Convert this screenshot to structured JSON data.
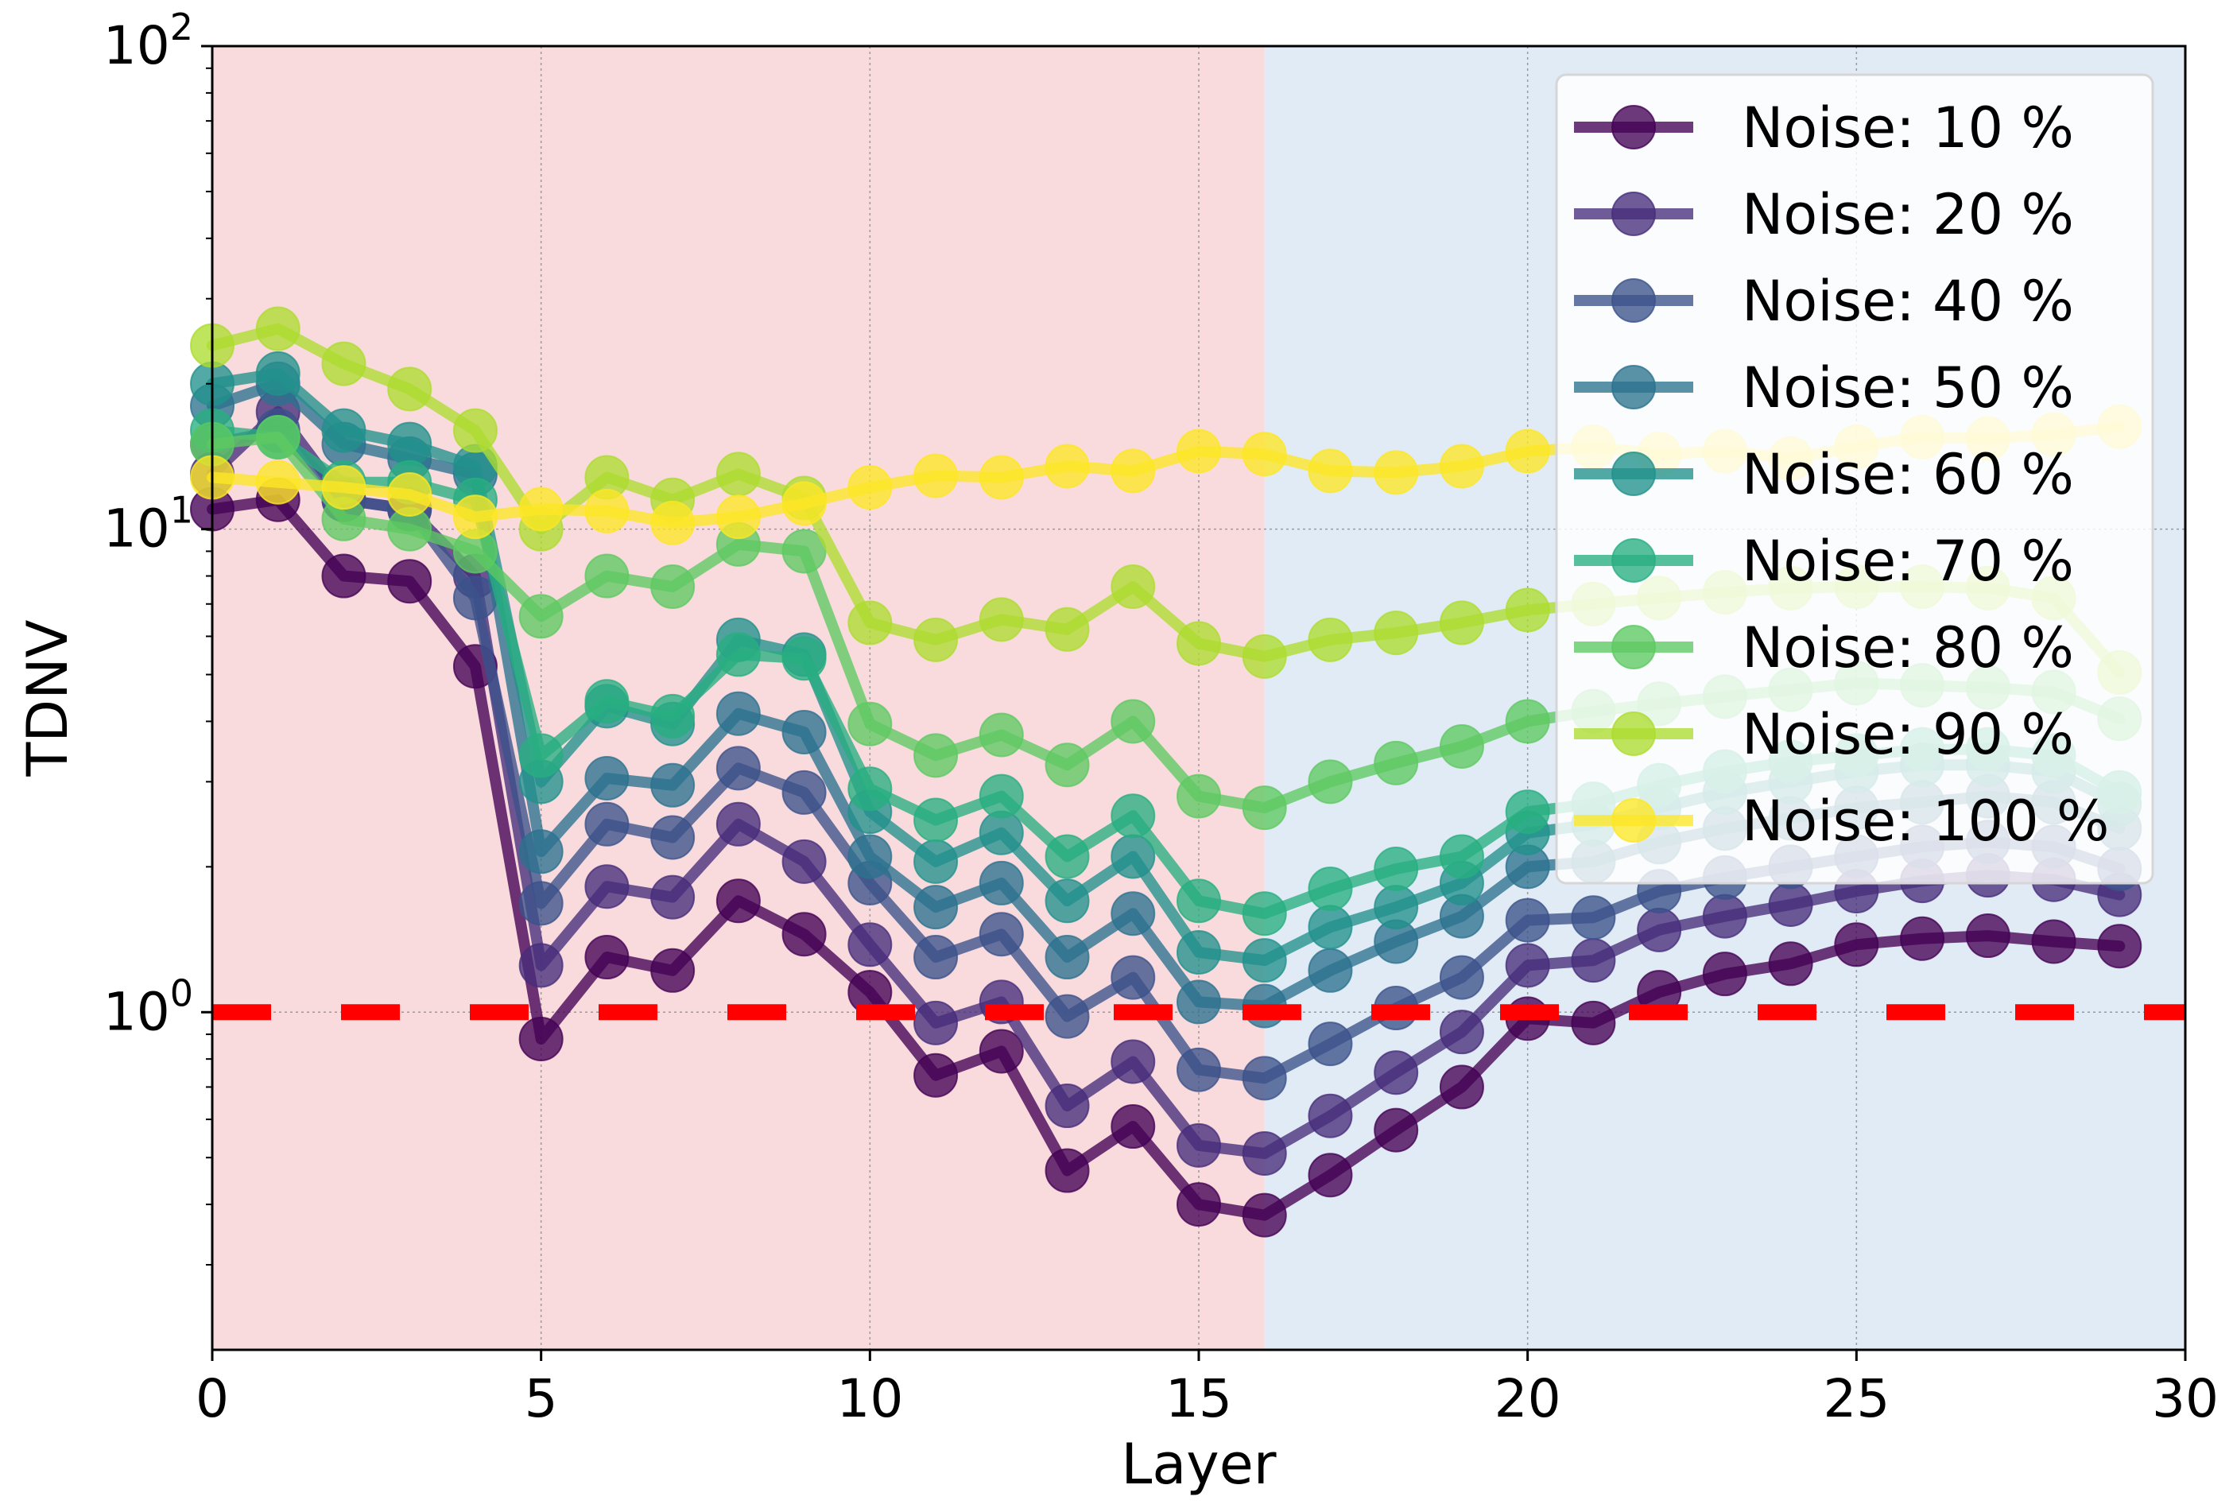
{
  "chart_data": {
    "type": "line",
    "xlabel": "Layer",
    "ylabel": "TDNV",
    "yscale": "log",
    "xlim": [
      0,
      30
    ],
    "ylim": [
      0.2,
      100
    ],
    "xticks": [
      {
        "value": 0,
        "label": "0"
      },
      {
        "value": 5,
        "label": "5"
      },
      {
        "value": 10,
        "label": "10"
      },
      {
        "value": 15,
        "label": "15"
      },
      {
        "value": 20,
        "label": "20"
      },
      {
        "value": 25,
        "label": "25"
      },
      {
        "value": 30,
        "label": "30"
      }
    ],
    "yticks": [
      {
        "value": 1,
        "base": "10",
        "exp": "0"
      },
      {
        "value": 10,
        "base": "10",
        "exp": "1"
      },
      {
        "value": 100,
        "base": "10",
        "exp": "2"
      }
    ],
    "grid": true,
    "legend_position": "top-right",
    "background_regions": [
      {
        "x_from": 0,
        "x_to": 16,
        "color": "#f9dbdd"
      },
      {
        "x_from": 16,
        "x_to": 30,
        "color": "#e1ebf5"
      }
    ],
    "reference_line": {
      "y": 1,
      "color": "#ff0000",
      "style": "dashed"
    },
    "x": [
      0,
      1,
      2,
      3,
      4,
      5,
      6,
      7,
      8,
      9,
      10,
      11,
      12,
      13,
      14,
      15,
      16,
      17,
      18,
      19,
      20,
      21,
      22,
      23,
      24,
      25,
      26,
      27,
      28,
      29
    ],
    "series": [
      {
        "name": "Noise: 10 %",
        "color": "#440154",
        "values": [
          11.0,
          11.5,
          8.0,
          7.8,
          5.2,
          0.88,
          1.3,
          1.22,
          1.7,
          1.45,
          1.1,
          0.74,
          0.83,
          0.47,
          0.58,
          0.4,
          0.38,
          0.46,
          0.57,
          0.7,
          0.97,
          0.95,
          1.1,
          1.2,
          1.26,
          1.38,
          1.42,
          1.44,
          1.4,
          1.37
        ]
      },
      {
        "name": "Noise: 20 %",
        "color": "#472d7b",
        "values": [
          13.0,
          17.5,
          11.5,
          11.0,
          8.0,
          1.25,
          1.82,
          1.73,
          2.45,
          2.05,
          1.38,
          0.95,
          1.05,
          0.64,
          0.79,
          0.53,
          0.51,
          0.61,
          0.75,
          0.91,
          1.25,
          1.28,
          1.48,
          1.58,
          1.67,
          1.78,
          1.87,
          1.92,
          1.88,
          1.75
        ]
      },
      {
        "name": "Noise: 40 %",
        "color": "#3b528b",
        "values": [
          15.0,
          16.0,
          11.5,
          11.0,
          7.2,
          1.68,
          2.45,
          2.3,
          3.2,
          2.85,
          1.85,
          1.3,
          1.45,
          0.98,
          1.18,
          0.76,
          0.73,
          0.86,
          1.02,
          1.18,
          1.55,
          1.57,
          1.78,
          1.9,
          2.0,
          2.1,
          2.2,
          2.25,
          2.2,
          1.98
        ]
      },
      {
        "name": "Noise: 50 %",
        "color": "#2c728e",
        "values": [
          18.0,
          20.0,
          15.0,
          14.0,
          13.0,
          2.15,
          3.05,
          2.95,
          4.15,
          3.8,
          2.1,
          1.65,
          1.85,
          1.3,
          1.6,
          1.05,
          1.03,
          1.22,
          1.4,
          1.58,
          2.0,
          2.05,
          2.25,
          2.4,
          2.52,
          2.65,
          2.72,
          2.8,
          2.72,
          2.4
        ]
      },
      {
        "name": "Noise: 60 %",
        "color": "#21918c",
        "values": [
          20.0,
          21.0,
          16.0,
          15.0,
          13.5,
          3.0,
          4.3,
          3.95,
          5.9,
          5.5,
          2.6,
          2.05,
          2.35,
          1.7,
          2.1,
          1.33,
          1.28,
          1.5,
          1.65,
          1.85,
          2.35,
          2.45,
          2.65,
          2.85,
          3.0,
          3.15,
          3.25,
          3.25,
          3.15,
          2.7
        ]
      },
      {
        "name": "Noise: 70 %",
        "color": "#28ae80",
        "values": [
          16.0,
          15.5,
          12.5,
          12.5,
          11.5,
          3.4,
          4.4,
          4.1,
          5.5,
          5.4,
          2.9,
          2.5,
          2.8,
          2.1,
          2.55,
          1.7,
          1.6,
          1.8,
          1.98,
          2.1,
          2.6,
          2.7,
          2.95,
          3.15,
          3.3,
          3.4,
          3.5,
          3.5,
          3.4,
          2.85
        ]
      },
      {
        "name": "Noise: 80 %",
        "color": "#5ec962",
        "values": [
          15.0,
          15.5,
          10.5,
          10.0,
          9.0,
          6.6,
          8.0,
          7.6,
          9.3,
          9.0,
          3.95,
          3.4,
          3.75,
          3.25,
          4.0,
          2.8,
          2.65,
          3.0,
          3.28,
          3.55,
          4.0,
          4.2,
          4.35,
          4.5,
          4.65,
          4.8,
          4.75,
          4.7,
          4.6,
          4.05
        ]
      },
      {
        "name": "Noise: 90 %",
        "color": "#addc30",
        "values": [
          24.0,
          26.0,
          22.0,
          19.5,
          16.0,
          10.0,
          12.8,
          11.5,
          13.0,
          11.6,
          6.4,
          5.9,
          6.5,
          6.2,
          7.6,
          5.8,
          5.45,
          5.9,
          6.1,
          6.4,
          6.8,
          7.0,
          7.2,
          7.4,
          7.55,
          7.6,
          7.6,
          7.55,
          7.2,
          5.05
        ]
      },
      {
        "name": "Noise: 100 %",
        "color": "#fde725",
        "values": [
          12.8,
          12.5,
          12.2,
          11.8,
          10.6,
          11.0,
          10.9,
          10.3,
          10.6,
          11.3,
          12.2,
          12.9,
          12.8,
          13.5,
          13.2,
          14.5,
          14.3,
          13.2,
          13.1,
          13.5,
          14.5,
          14.8,
          14.3,
          14.5,
          14.0,
          14.8,
          15.5,
          15.4,
          15.7,
          16.3
        ]
      }
    ]
  }
}
